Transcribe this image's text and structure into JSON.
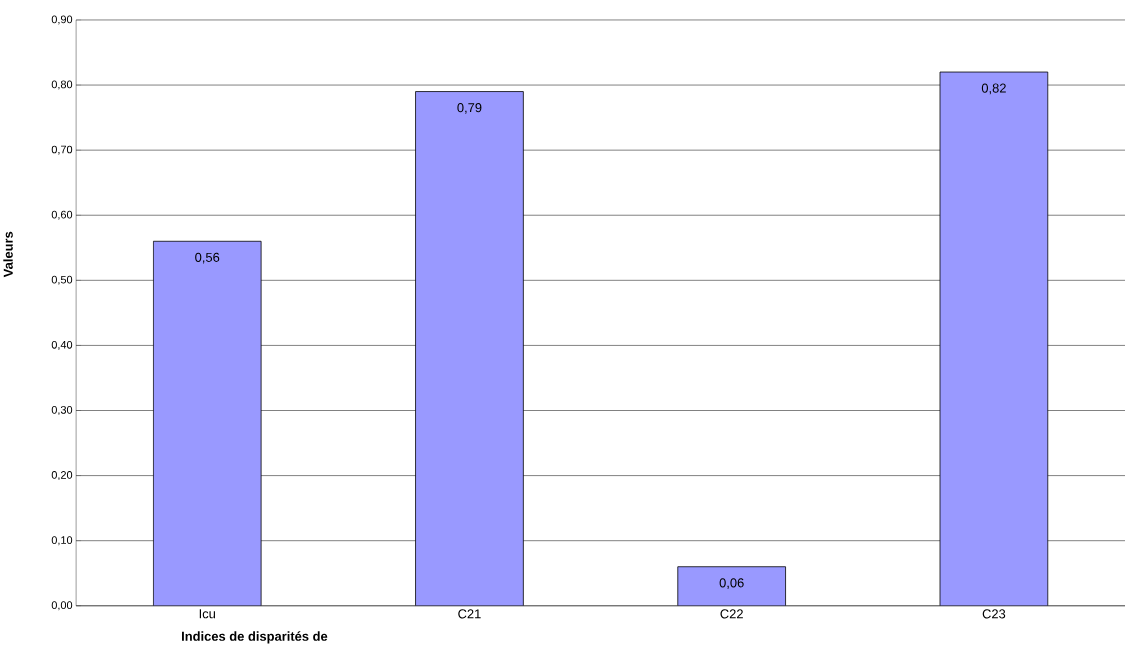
{
  "chart_data": {
    "type": "bar",
    "xlabel": "Indices de disparités de",
    "ylabel": "Valeurs",
    "categories": [
      "Icu",
      "C21",
      "C22",
      "C23"
    ],
    "values": [
      0.56,
      0.79,
      0.06,
      0.82
    ],
    "value_labels": [
      "0,56",
      "0,79",
      "0,06",
      "0,82"
    ],
    "color": "#9999ff",
    "ylim": [
      0,
      0.9
    ],
    "yticks": [
      {
        "value": 0,
        "label": "0,00"
      },
      {
        "value": 0.1,
        "label": "0,10"
      },
      {
        "value": 0.2,
        "label": "0,20"
      },
      {
        "value": 0.3,
        "label": "0,30"
      },
      {
        "value": 0.4,
        "label": "0,40"
      },
      {
        "value": 0.5,
        "label": "0,50"
      },
      {
        "value": 0.6,
        "label": "0,60"
      },
      {
        "value": 0.7,
        "label": "0,70"
      },
      {
        "value": 0.8,
        "label": "0,80"
      },
      {
        "value": 0.9,
        "label": "0,90"
      }
    ],
    "grid": "y"
  }
}
